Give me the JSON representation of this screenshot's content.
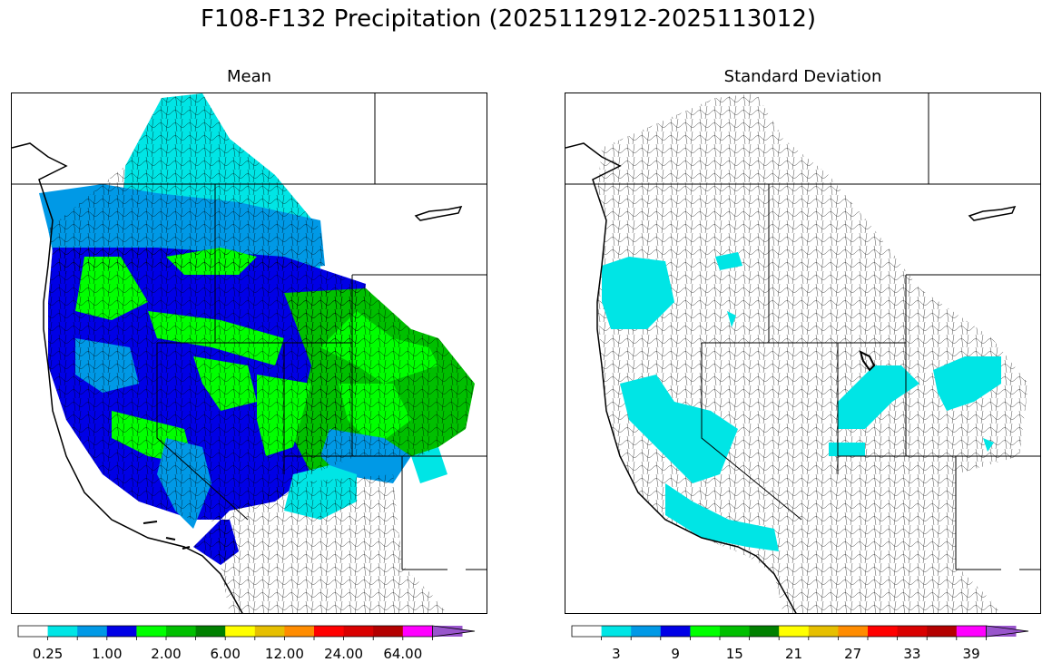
{
  "figure": {
    "title": "F108-F132 Precipitation (2025112912-2025113012)"
  },
  "panels": [
    {
      "id": "mean",
      "title": "Mean",
      "colorbar": {
        "colors": [
          "#ffffff",
          "#00e5e5",
          "#0099e6",
          "#0000e6",
          "#00ff00",
          "#00bf00",
          "#008000",
          "#ffff00",
          "#e6bf00",
          "#ff8c00",
          "#ff0000",
          "#d90000",
          "#b30000",
          "#ff00ff",
          "#9955cc"
        ],
        "tick_labels": [
          "0.25",
          "1.00",
          "2.00",
          "6.00",
          "12.00",
          "24.00",
          "64.00"
        ],
        "label_bins": [
          1,
          3,
          5,
          7,
          9,
          11,
          13
        ],
        "extend": "max"
      }
    },
    {
      "id": "stddev",
      "title": "Standard Deviation",
      "colorbar": {
        "colors": [
          "#ffffff",
          "#00e5e5",
          "#0099e6",
          "#0000e6",
          "#00ff00",
          "#00bf00",
          "#008000",
          "#ffff00",
          "#e6bf00",
          "#ff8c00",
          "#ff0000",
          "#d90000",
          "#b30000",
          "#ff00ff",
          "#9955cc"
        ],
        "tick_labels": [
          "3",
          "9",
          "15",
          "21",
          "27",
          "33",
          "39"
        ],
        "label_bins": [
          1,
          3,
          5,
          7,
          9,
          11,
          13
        ],
        "extend": "max"
      }
    }
  ]
}
